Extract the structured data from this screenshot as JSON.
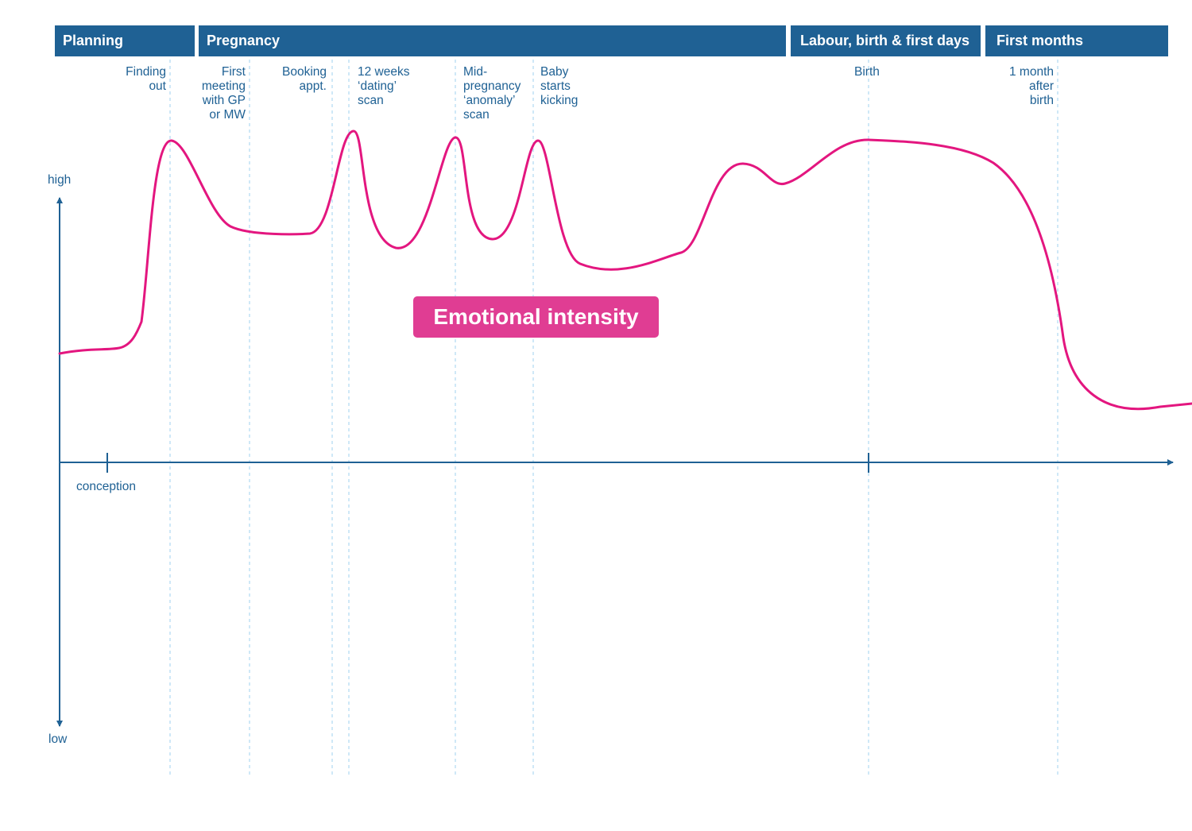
{
  "colors": {
    "phase_bar": "#1f6194",
    "axis": "#1f6194",
    "guide_line": "#9fd0ef",
    "curve": "#e3167f",
    "label_bg": "#e03d93"
  },
  "phases": [
    {
      "label": "Planning"
    },
    {
      "label": "Pregnancy"
    },
    {
      "label": "Labour, birth & first days"
    },
    {
      "label": "First months"
    }
  ],
  "milestones": [
    {
      "label": "Finding\nout"
    },
    {
      "label": "First\nmeeting\nwith GP\nor MW"
    },
    {
      "label": "Booking\nappt."
    },
    {
      "label": "12 weeks\n‘dating’\nscan"
    },
    {
      "label": "Mid-\npregnancy\n‘anomaly’\nscan"
    },
    {
      "label": "Baby\nstarts\nkicking"
    },
    {
      "label": "Birth"
    },
    {
      "label": "1 month\nafter\nbirth"
    }
  ],
  "axis": {
    "y_high": "high",
    "y_low": "low",
    "x_tick": "conception"
  },
  "chart_data": {
    "type": "line",
    "title": "",
    "series": [
      {
        "name": "Emotional intensity"
      }
    ],
    "x_markers": [
      "conception",
      "Birth"
    ],
    "y_range": [
      "low",
      "high"
    ]
  }
}
